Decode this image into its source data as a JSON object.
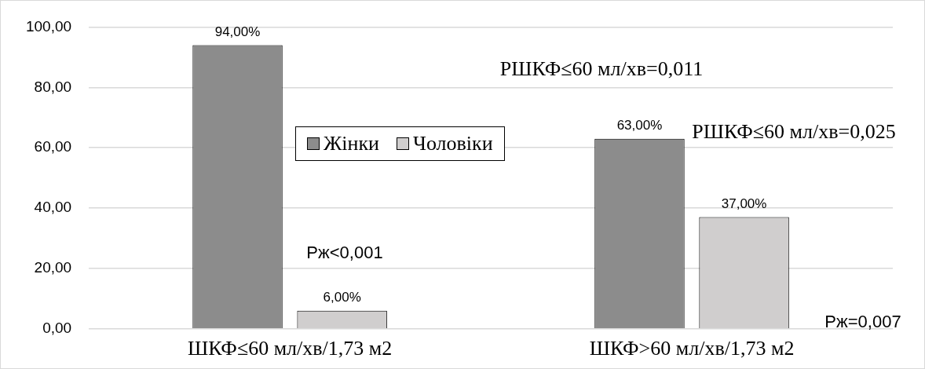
{
  "chart_data": {
    "type": "bar",
    "categories": [
      "ШКФ≤60 мл/хв/1,73 м2",
      "ШКФ>60 мл/хв/1,73 м2"
    ],
    "series": [
      {
        "name": "Жінки",
        "color": "#8c8c8c",
        "values": [
          94,
          63
        ],
        "value_labels": [
          "94,00%",
          "63,00%"
        ]
      },
      {
        "name": "Чоловіки",
        "color": "#d0cece",
        "values": [
          6,
          37
        ],
        "value_labels": [
          "6,00%",
          "37,00%"
        ]
      }
    ],
    "ylim": [
      0,
      100
    ],
    "yticks": [
      {
        "value": 0,
        "label": "0,00"
      },
      {
        "value": 20,
        "label": "20,00"
      },
      {
        "value": 40,
        "label": "40,00"
      },
      {
        "value": 60,
        "label": "60,00"
      },
      {
        "value": 80,
        "label": "80,00"
      },
      {
        "value": 100,
        "label": "100,00"
      }
    ],
    "grid": "y",
    "legend": "center",
    "annotations": [
      "РШКФ≤60 мл/хв=0,011",
      "РШКФ≤60 мл/хв=0,025",
      "Рж<0,001",
      "Рж=0,007"
    ]
  }
}
